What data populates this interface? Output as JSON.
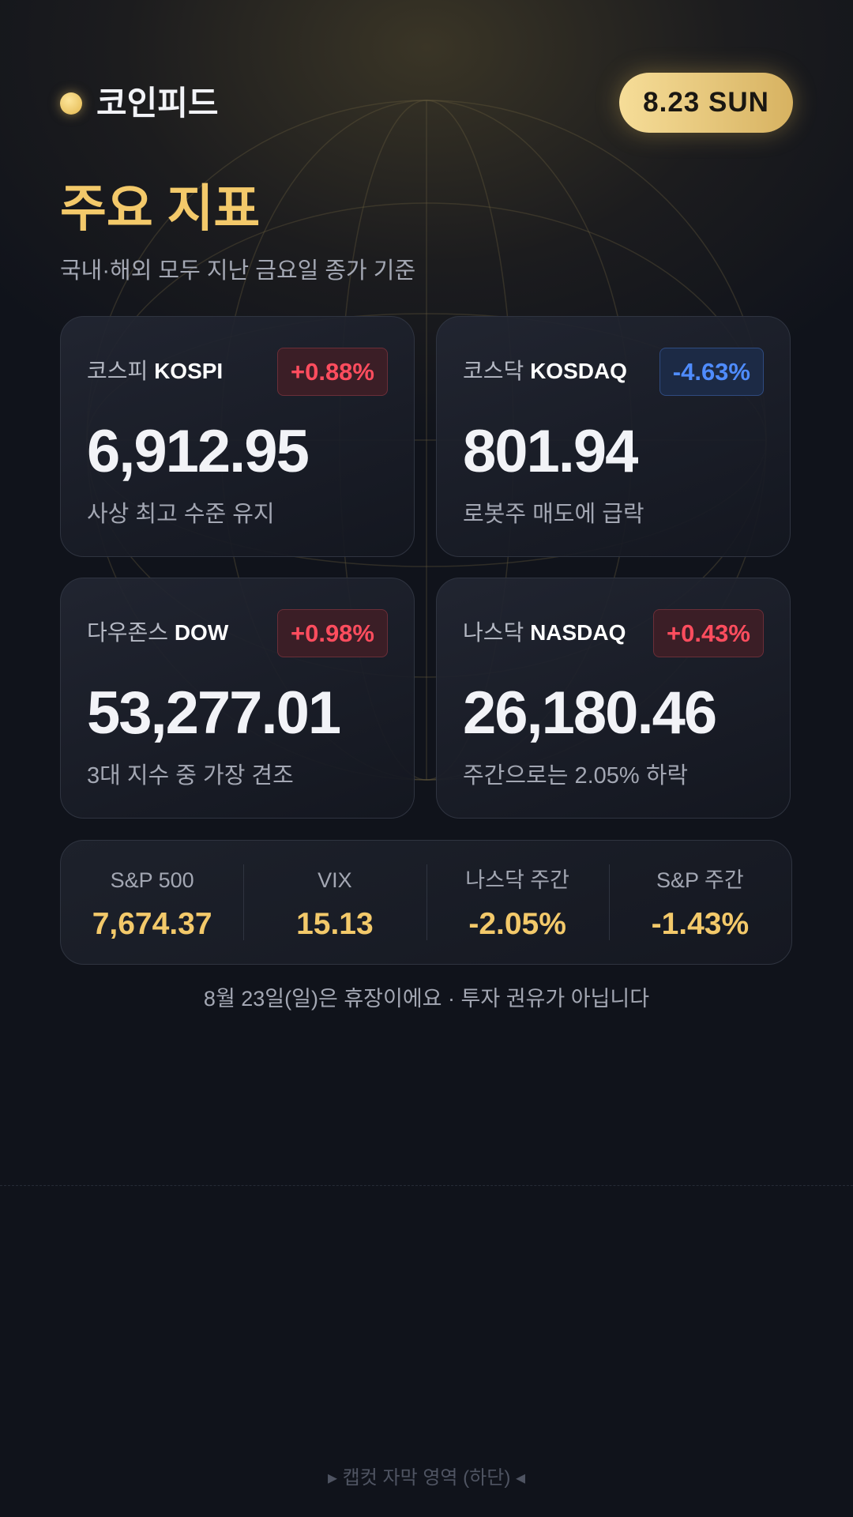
{
  "header": {
    "brand": "코인피드",
    "date": "8.23 SUN"
  },
  "heading": {
    "title": "주요 지표",
    "subtitle": "국내·해외 모두 지난 금요일 종가 기준"
  },
  "cards": [
    {
      "name_ko": "코스피",
      "name_en": "KOSPI",
      "change": "+0.88%",
      "value": "6,912.95",
      "note": "사상 최고 수준 유지"
    },
    {
      "name_ko": "코스닥",
      "name_en": "KOSDAQ",
      "change": "-4.63%",
      "value": "801.94",
      "note": "로봇주 매도에 급락"
    },
    {
      "name_ko": "다우존스",
      "name_en": "DOW",
      "change": "+0.98%",
      "value": "53,277.01",
      "note": "3대 지수 중 가장 견조"
    },
    {
      "name_ko": "나스닥",
      "name_en": "NASDAQ",
      "change": "+0.43%",
      "value": "26,180.46",
      "note": "주간으로는 2.05% 하락"
    }
  ],
  "summary": [
    {
      "label": "S&P 500",
      "value": "7,674.37"
    },
    {
      "label": "VIX",
      "value": "15.13"
    },
    {
      "label": "나스닥 주간",
      "value": "-2.05%"
    },
    {
      "label": "S&P 주간",
      "value": "-1.43%"
    }
  ],
  "footer": {
    "note": "8월 23일(일)은 휴장이에요 · 투자 권유가 아닙니다",
    "caption": "▸ 캡컷 자막 영역 (하단) ◂"
  }
}
